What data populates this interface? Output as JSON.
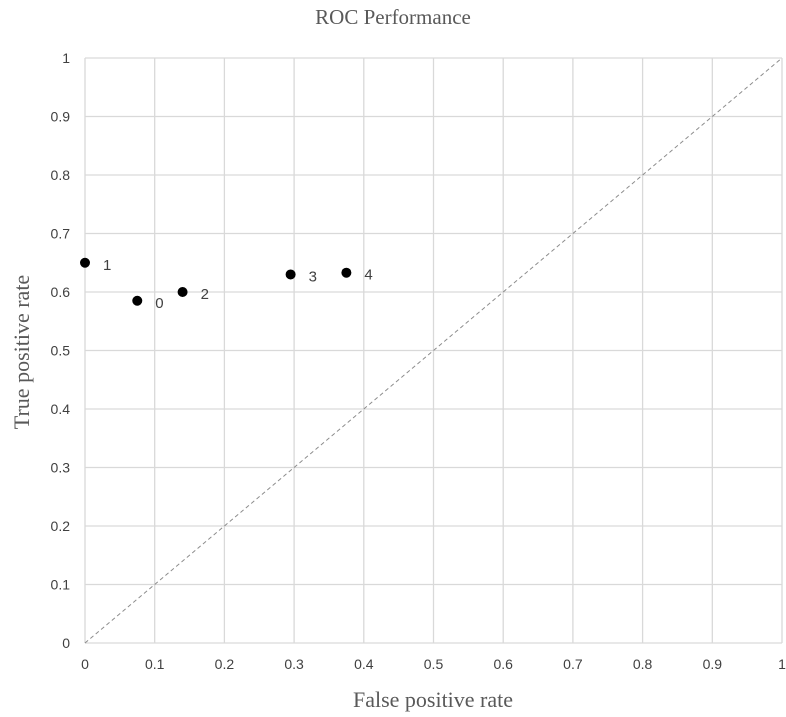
{
  "chart_data": {
    "type": "scatter",
    "title": "ROC Performance",
    "xlabel": "False positive rate",
    "ylabel": "True positive rate",
    "xlim": [
      0,
      1
    ],
    "ylim": [
      0,
      1
    ],
    "x_ticks": [
      "0",
      "0.1",
      "0.2",
      "0.3",
      "0.4",
      "0.5",
      "0.6",
      "0.7",
      "0.8",
      "0.9",
      "1"
    ],
    "y_ticks": [
      "0",
      "0.1",
      "0.2",
      "0.3",
      "0.4",
      "0.5",
      "0.6",
      "0.7",
      "0.8",
      "0.9",
      "1"
    ],
    "grid": true,
    "reference_line": {
      "style": "dashed",
      "from": [
        0,
        0
      ],
      "to": [
        1,
        1
      ]
    },
    "points": [
      {
        "label": "0",
        "x": 0.075,
        "y": 0.585
      },
      {
        "label": "1",
        "x": 0.0,
        "y": 0.65
      },
      {
        "label": "2",
        "x": 0.14,
        "y": 0.6
      },
      {
        "label": "3",
        "x": 0.295,
        "y": 0.63
      },
      {
        "label": "4",
        "x": 0.375,
        "y": 0.633
      }
    ],
    "colors": {
      "points": "#000000",
      "grid": "#d9d9d9",
      "reference_line": "#8c8c8c",
      "text": "#595959"
    }
  }
}
